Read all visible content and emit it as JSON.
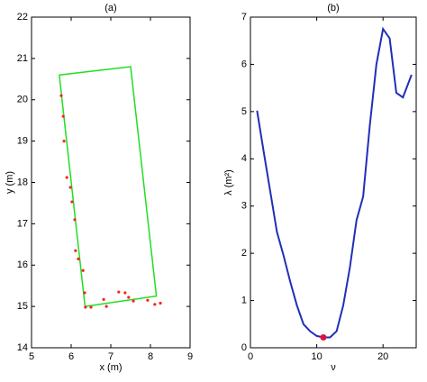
{
  "chart_data": [
    {
      "type": "scatter",
      "title": "(a)",
      "x_label": "x (m)",
      "y_label": "y (m)",
      "xlim": [
        5,
        9
      ],
      "ylim": [
        14,
        22
      ],
      "xticks": [
        5,
        6,
        7,
        8,
        9
      ],
      "yticks": [
        14,
        15,
        16,
        17,
        18,
        19,
        20,
        21,
        22
      ],
      "x": [
        5.75,
        5.8,
        5.82,
        5.89,
        5.98,
        6.02,
        6.09,
        6.11,
        6.18,
        6.3,
        6.34,
        6.36,
        6.5,
        6.82,
        6.89,
        7.2,
        7.36,
        7.45,
        7.57,
        7.93,
        8.11,
        8.25
      ],
      "y": [
        20.1,
        19.6,
        19.0,
        18.12,
        17.88,
        17.53,
        17.1,
        16.35,
        16.15,
        15.87,
        15.33,
        14.98,
        14.98,
        15.17,
        15.0,
        15.35,
        15.33,
        15.22,
        15.13,
        15.15,
        15.05,
        15.08
      ],
      "color": "#ff2020",
      "polygon": {
        "x": [
          5.7,
          7.5,
          8.15,
          6.35,
          5.7
        ],
        "y": [
          20.6,
          20.8,
          15.25,
          15.0,
          20.6
        ],
        "color": "#22dd22"
      }
    },
    {
      "type": "line",
      "title": "(b)",
      "x_label": "ν",
      "y_label": "λ (m²)",
      "xlim": [
        0,
        25
      ],
      "ylim": [
        0,
        7
      ],
      "xticks": [
        0,
        10,
        20
      ],
      "yticks": [
        0,
        1,
        2,
        3,
        4,
        5,
        6,
        7
      ],
      "x": [
        1,
        2,
        3,
        4,
        5,
        6,
        7,
        8,
        9,
        10,
        11,
        12,
        13,
        14,
        15,
        16,
        17,
        18,
        19,
        20,
        21,
        22,
        23,
        24.3
      ],
      "values": [
        5.02,
        4.15,
        3.3,
        2.45,
        1.95,
        1.4,
        0.9,
        0.5,
        0.35,
        0.25,
        0.22,
        0.22,
        0.35,
        0.9,
        1.7,
        2.7,
        3.2,
        4.7,
        6.0,
        6.75,
        6.55,
        5.4,
        5.3,
        5.78
      ],
      "color": "#1f2fb8",
      "highlight": {
        "x": 11,
        "y": 0.22,
        "color": "#e0103a"
      }
    }
  ]
}
